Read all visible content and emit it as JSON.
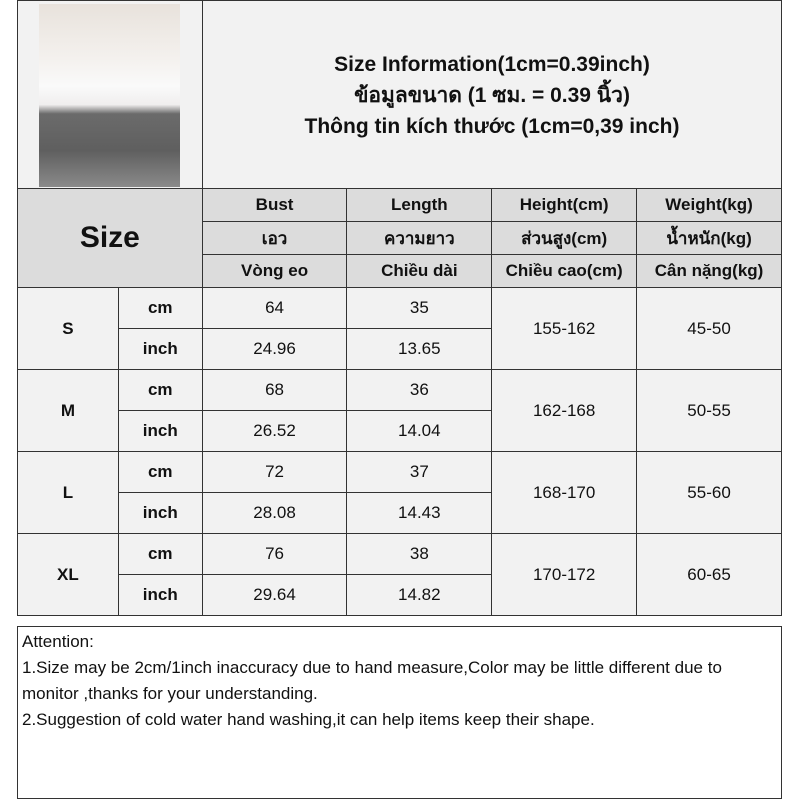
{
  "title": {
    "line1": "Size Information(1cm=0.39inch)",
    "line2": "ข้อมูลขนาด (1 ซม. = 0.39 นิ้ว)",
    "line3": "Thông tin kích thước (1cm=0,39 inch)"
  },
  "table": {
    "size_label": "Size",
    "headers": [
      [
        "Bust",
        "Length",
        "Height(cm)",
        "Weight(kg)"
      ],
      [
        "เอว",
        "ความยาว",
        "ส่วนสูง(cm)",
        "น้ำหนัก(kg)"
      ],
      [
        "Vòng eo",
        "Chiều dài",
        "Chiều cao(cm)",
        "Cân nặng(kg)"
      ]
    ],
    "rows": [
      {
        "size": "S",
        "cm_label": "cm",
        "inch_label": "inch",
        "bust_cm": "64",
        "length_cm": "35",
        "bust_inch": "24.96",
        "length_inch": "13.65",
        "height": "155-162",
        "weight": "45-50"
      },
      {
        "size": "M",
        "cm_label": "cm",
        "inch_label": "inch",
        "bust_cm": "68",
        "length_cm": "36",
        "bust_inch": "26.52",
        "length_inch": "14.04",
        "height": "162-168",
        "weight": "50-55"
      },
      {
        "size": "L",
        "cm_label": "cm",
        "inch_label": "inch",
        "bust_cm": "72",
        "length_cm": "37",
        "bust_inch": "28.08",
        "length_inch": "14.43",
        "height": "168-170",
        "weight": "55-60"
      },
      {
        "size": "XL",
        "cm_label": "cm",
        "inch_label": "inch",
        "bust_cm": "76",
        "length_cm": "38",
        "bust_inch": "29.64",
        "length_inch": "14.82",
        "height": "170-172",
        "weight": "60-65"
      }
    ]
  },
  "attention": {
    "heading": "Attention:",
    "note1": "1.Size may be 2cm/1inch inaccuracy due to hand measure,Color may be little different due to monitor ,thanks for your understanding.",
    "note2": "2.Suggestion of cold water hand washing,it can help items keep their shape."
  }
}
